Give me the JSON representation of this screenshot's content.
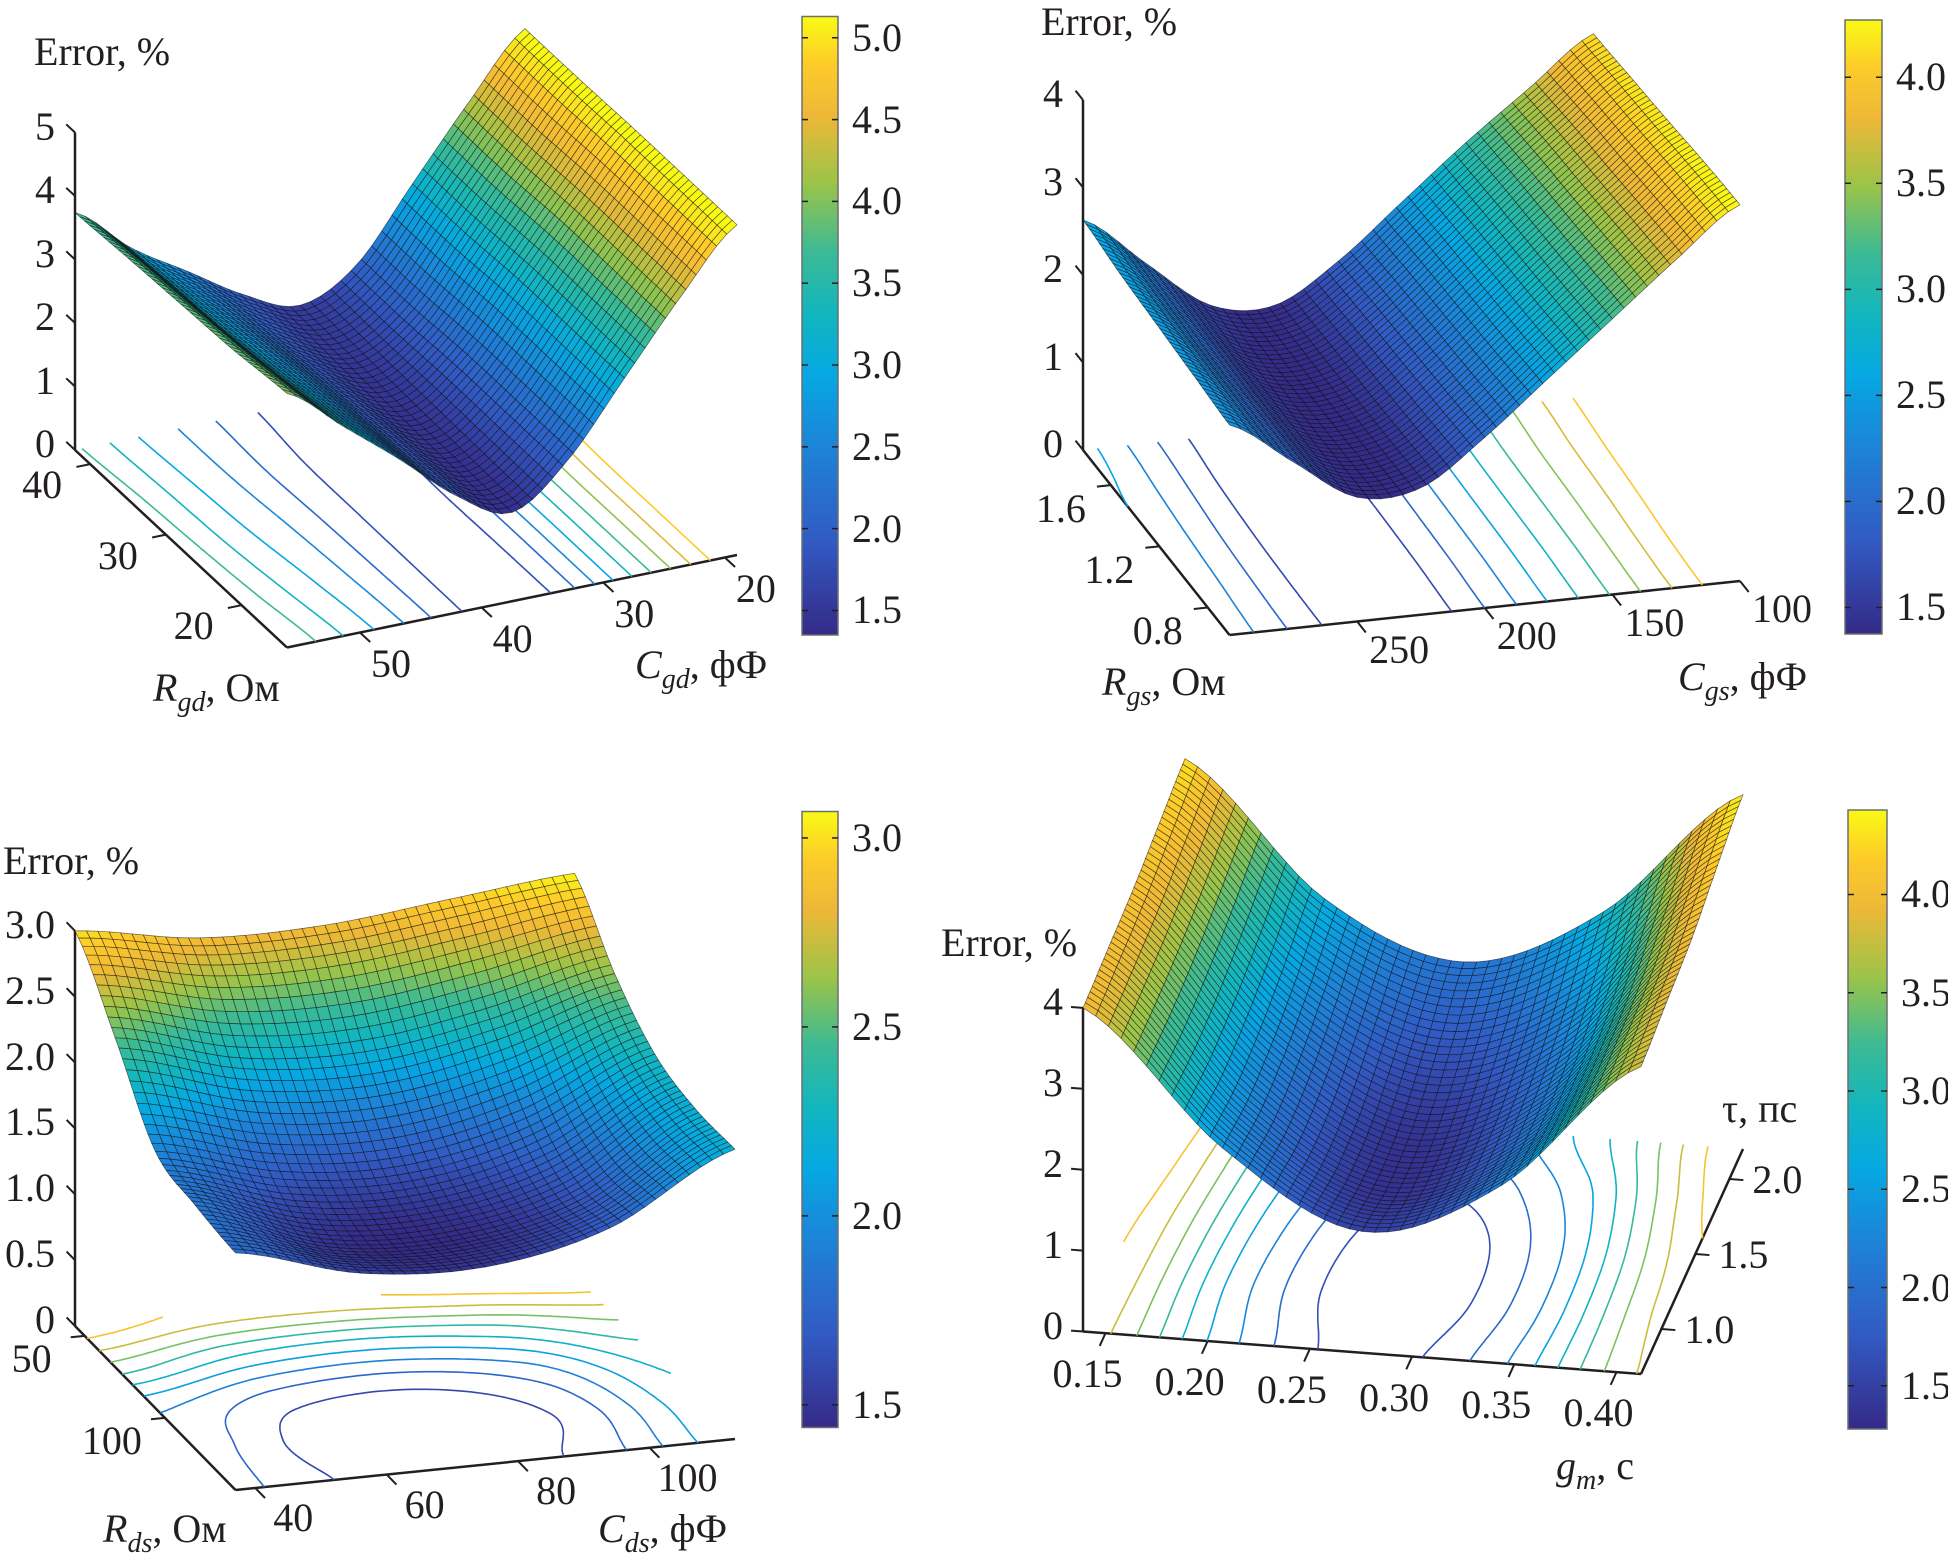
{
  "figure": {
    "colormap": "parula",
    "mesh_color": "#000000",
    "axis_color": "#231f20"
  },
  "chart_data": [
    {
      "type": "surface",
      "z_axis": {
        "label": "Error, %",
        "range": [
          0,
          5
        ],
        "ticks": [
          "0",
          "1",
          "2",
          "3",
          "4",
          "5"
        ]
      },
      "row_axis": {
        "label": {
          "symbol": "R",
          "sub": "gd",
          "unit": ", Ом",
          "italic": true
        },
        "range": [
          42,
          14
        ],
        "ticks": [
          "40",
          "30",
          "20"
        ]
      },
      "col_axis": {
        "label": {
          "symbol": "C",
          "sub": "gd",
          "unit": ", фФ",
          "italic": true
        },
        "range": [
          56,
          19
        ],
        "ticks": [
          "50",
          "40",
          "30",
          "20"
        ]
      },
      "colorbar": {
        "range": [
          1.35,
          5.13
        ],
        "ticks": [
          "1.5",
          "2.0",
          "2.5",
          "3.0",
          "3.5",
          "4.0",
          "4.5",
          "5.0"
        ]
      },
      "floor_contours": true,
      "rows": [
        14,
        21,
        28,
        35,
        42
      ],
      "cols": [
        19,
        24,
        28,
        33,
        37,
        42,
        47,
        51,
        56
      ],
      "z": [
        [
          5.2,
          4.25,
          3.15,
          2.05,
          1.4,
          1.85,
          2.6,
          3.3,
          4.0
        ],
        [
          5.2,
          4.25,
          3.15,
          2.05,
          1.42,
          1.85,
          2.55,
          3.2,
          3.9
        ],
        [
          5.2,
          4.25,
          3.15,
          2.05,
          1.45,
          1.85,
          2.5,
          3.1,
          3.85
        ],
        [
          5.18,
          4.2,
          3.1,
          2.0,
          1.5,
          1.85,
          2.45,
          3.05,
          3.8
        ],
        [
          5.18,
          4.2,
          3.1,
          2.0,
          1.55,
          1.9,
          2.45,
          3.0,
          3.74
        ]
      ]
    },
    {
      "type": "surface",
      "z_axis": {
        "label": "Error, %",
        "range": [
          0,
          4
        ],
        "ticks": [
          "0",
          "1",
          "2",
          "3",
          "4"
        ]
      },
      "row_axis": {
        "label": {
          "symbol": "R",
          "sub": "gs",
          "unit": ", Ом",
          "italic": true
        },
        "range": [
          1.83,
          0.62
        ],
        "ticks": [
          "1.6",
          "1.2",
          "0.8"
        ]
      },
      "col_axis": {
        "label": {
          "symbol": "C",
          "sub": "gs",
          "unit": ", фФ",
          "italic": true
        },
        "range": [
          300,
          100
        ],
        "ticks": [
          "250",
          "200",
          "150",
          "100"
        ]
      },
      "colorbar": {
        "range": [
          1.375,
          4.27
        ],
        "ticks": [
          "1.5",
          "2.0",
          "2.5",
          "3.0",
          "3.5",
          "4.0"
        ]
      },
      "floor_contours": true,
      "rows": [
        0.62,
        0.92,
        1.23,
        1.53,
        1.83
      ],
      "cols": [
        100,
        125,
        150,
        175,
        200,
        225,
        250,
        275,
        300
      ],
      "z": [
        [
          4.3,
          3.75,
          3.15,
          2.55,
          1.95,
          1.45,
          1.42,
          1.9,
          2.4
        ],
        [
          4.27,
          3.72,
          3.12,
          2.52,
          1.92,
          1.43,
          1.42,
          1.92,
          2.45
        ],
        [
          4.22,
          3.68,
          3.1,
          2.5,
          1.9,
          1.42,
          1.43,
          1.95,
          2.5
        ],
        [
          4.18,
          3.65,
          3.08,
          2.48,
          1.88,
          1.42,
          1.45,
          2.0,
          2.55
        ],
        [
          4.14,
          3.6,
          3.05,
          2.45,
          1.85,
          1.42,
          1.5,
          2.05,
          2.63
        ]
      ]
    },
    {
      "type": "surface",
      "z_axis": {
        "label": "Error, %",
        "range": [
          0,
          3
        ],
        "ticks": [
          "0",
          "0.5",
          "1.0",
          "1.5",
          "2.0",
          "2.5",
          "3.0"
        ]
      },
      "row_axis": {
        "label": {
          "symbol": "R",
          "sub": "ds",
          "unit": ", Ом",
          "italic": true
        },
        "range": [
          44,
          144
        ],
        "ticks": [
          "50",
          "100"
        ]
      },
      "col_axis": {
        "label": {
          "symbol": "C",
          "sub": "ds",
          "unit": ", фФ",
          "italic": true
        },
        "range": [
          37,
          113
        ],
        "ticks": [
          "40",
          "60",
          "80",
          "100"
        ]
      },
      "colorbar": {
        "range": [
          1.44,
          3.07
        ],
        "ticks": [
          "1.5",
          "2.0",
          "2.5",
          "3.0"
        ]
      },
      "floor_contours": true,
      "rows": [
        44,
        69,
        94,
        119,
        144
      ],
      "cols": [
        37,
        56,
        75,
        94,
        113
      ],
      "z": [
        [
          3.0,
          2.85,
          2.85,
          2.95,
          3.05
        ],
        [
          2.5,
          2.25,
          2.2,
          2.35,
          2.6
        ],
        [
          1.95,
          1.7,
          1.65,
          1.85,
          2.3
        ],
        [
          1.85,
          1.5,
          1.45,
          1.65,
          2.2
        ],
        [
          1.8,
          1.55,
          1.5,
          1.7,
          2.2
        ]
      ]
    },
    {
      "type": "surface",
      "z_axis": {
        "label": "Error, %",
        "range": [
          0,
          4
        ],
        "ticks": [
          "0",
          "1",
          "2",
          "3",
          "4"
        ]
      },
      "row_axis": {
        "label": {
          "symbol": "g",
          "sub": "m",
          "unit": ", с",
          "italic": true
        },
        "range": [
          0.139,
          0.412
        ],
        "ticks": [
          "0.15",
          "0.20",
          "0.25",
          "0.30",
          "0.35",
          "0.40"
        ]
      },
      "col_axis": {
        "label": {
          "symbol": "τ",
          "sub": "",
          "unit": ", пс",
          "italic": false
        },
        "range": [
          0.7,
          2.2
        ],
        "ticks": [
          "1.0",
          "1.5",
          "2.0"
        ]
      },
      "colorbar": {
        "range": [
          1.28,
          4.43
        ],
        "ticks": [
          "1.5",
          "2.0",
          "2.5",
          "3.0",
          "3.5",
          "4.0"
        ]
      },
      "floor_contours": true,
      "rows": [
        0.139,
        0.207,
        0.275,
        0.344,
        0.412
      ],
      "cols": [
        0.7,
        1.075,
        1.45,
        1.825,
        2.2
      ],
      "z": [
        [
          4.0,
          4.05,
          4.1,
          4.2,
          4.3
        ],
        [
          2.4,
          2.3,
          2.35,
          2.5,
          2.7
        ],
        [
          1.5,
          1.35,
          1.4,
          1.7,
          2.05
        ],
        [
          2.2,
          2.1,
          2.15,
          2.4,
          2.8
        ],
        [
          3.8,
          3.9,
          4.0,
          4.2,
          4.38
        ]
      ]
    }
  ]
}
